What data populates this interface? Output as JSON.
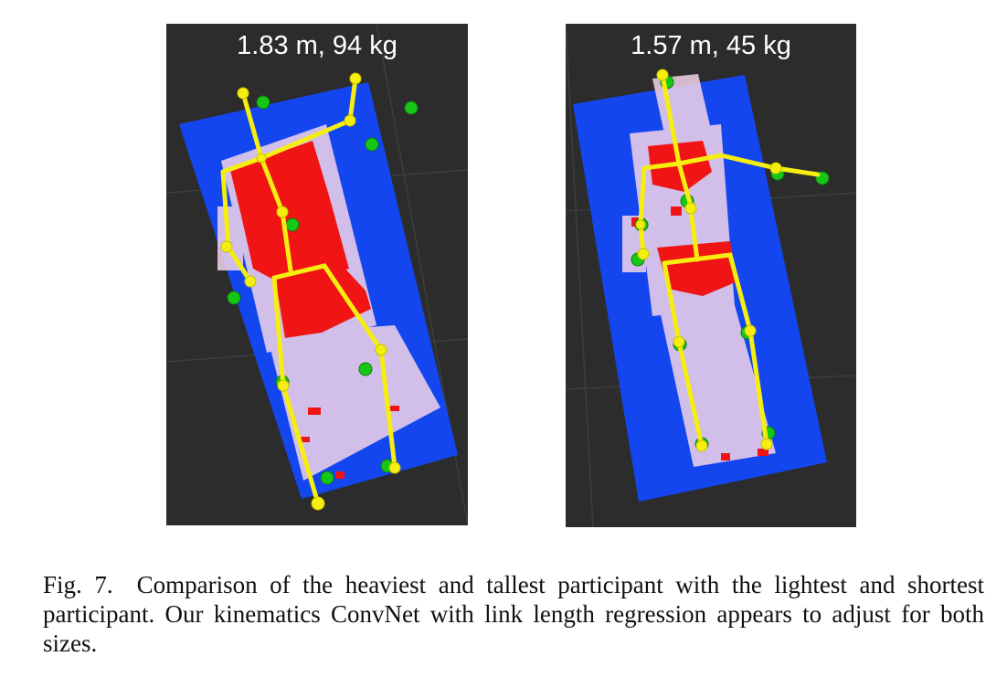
{
  "figure": {
    "panels": [
      {
        "label": "1.83 m, 94 kg"
      },
      {
        "label": "1.57 m, 45 kg"
      }
    ],
    "caption": {
      "label": "Fig. 7.",
      "text": "Comparison of the heaviest and tallest participant with the lightest and shortest participant. Our kinematics ConvNet with link length regression appears to adjust for both sizes."
    },
    "colors": {
      "background": "#2c2c2c",
      "mat": "#1446f0",
      "pressure_high": "#f01414",
      "skeleton": "#f5ee10",
      "ground_truth": "#16c716"
    }
  }
}
